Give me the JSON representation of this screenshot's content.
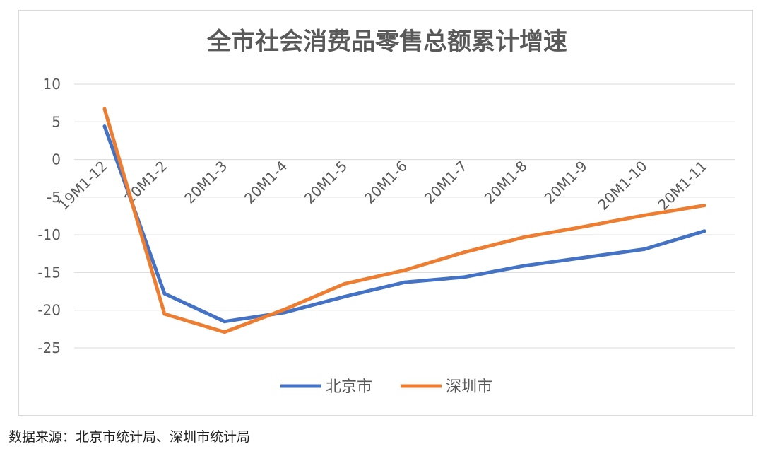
{
  "chart_data": {
    "type": "line",
    "title": "全市社会消费品零售总额累计增速",
    "xlabel": "",
    "ylabel": "",
    "categories": [
      "19M1-12",
      "20M1-2",
      "20M1-3",
      "20M1-4",
      "20M1-5",
      "20M1-6",
      "20M1-7",
      "20M1-8",
      "20M1-9",
      "20M1-10",
      "20M1-11"
    ],
    "ylim": [
      -25,
      10
    ],
    "yticks": [
      10,
      5,
      0,
      -5,
      -10,
      -15,
      -20,
      -25
    ],
    "grid": true,
    "legend_position": "bottom",
    "series": [
      {
        "name": "北京市",
        "color": "#4472C4",
        "values": [
          4.4,
          -17.8,
          -21.5,
          -20.3,
          -18.2,
          -16.3,
          -15.6,
          -14.1,
          -13.0,
          -11.9,
          -9.5
        ]
      },
      {
        "name": "深圳市",
        "color": "#ED7D31",
        "values": [
          6.7,
          -20.5,
          -22.9,
          -19.9,
          -16.5,
          -14.7,
          -12.3,
          -10.3,
          -8.9,
          -7.4,
          -6.1
        ]
      }
    ]
  },
  "source": "数据来源：北京市统计局、深圳市统计局"
}
